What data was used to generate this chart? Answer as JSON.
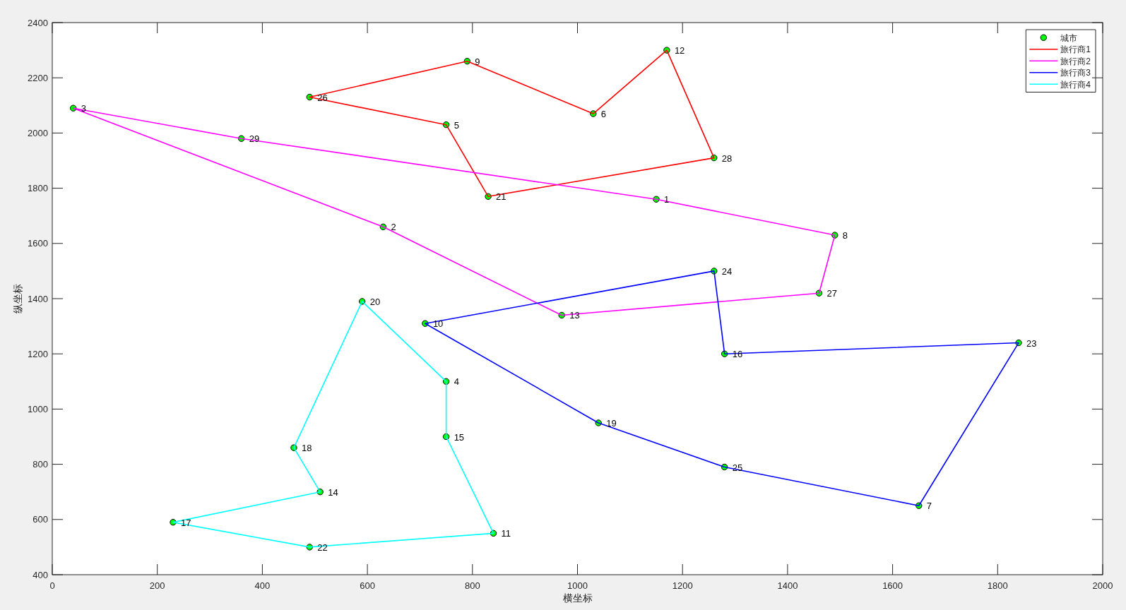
{
  "chart_data": {
    "type": "line",
    "xlabel": "横坐标",
    "ylabel": "纵坐标",
    "xlim": [
      0,
      2000
    ],
    "ylim": [
      400,
      2400
    ],
    "xticks": [
      0,
      200,
      400,
      600,
      800,
      1000,
      1200,
      1400,
      1600,
      1800,
      2000
    ],
    "yticks": [
      400,
      600,
      800,
      1000,
      1200,
      1400,
      1600,
      1800,
      2000,
      2200,
      2400
    ],
    "legend": "top right",
    "line_style": "solid",
    "series": [
      {
        "name": "城市",
        "type": "scatter",
        "marker": "circle",
        "color": "#00ff00",
        "x": [
          1150,
          630,
          40,
          750,
          750,
          1030,
          1650,
          1490,
          790,
          710,
          840,
          1170,
          970,
          510,
          750,
          1280,
          230,
          460,
          1040,
          590,
          830,
          490,
          1840,
          1260,
          1280,
          490,
          1460,
          1260,
          360
        ],
        "values": [
          1760,
          1660,
          2090,
          1100,
          2030,
          2070,
          650,
          1630,
          2260,
          1310,
          550,
          2300,
          1340,
          700,
          900,
          1200,
          590,
          860,
          950,
          1390,
          1770,
          500,
          1240,
          1500,
          790,
          2130,
          1420,
          1910,
          1980
        ]
      },
      {
        "name": "旅行商1",
        "color": "#ff0000",
        "x": [
          490,
          790,
          1030,
          1170,
          1260,
          830,
          750,
          490
        ],
        "values": [
          2130,
          2260,
          2070,
          2300,
          1910,
          1770,
          2030,
          2130
        ]
      },
      {
        "name": "旅行商2",
        "color": "#ff00ff",
        "x": [
          40,
          360,
          1150,
          1490,
          1460,
          970,
          630,
          40
        ],
        "values": [
          2090,
          1980,
          1760,
          1630,
          1420,
          1340,
          1660,
          2090
        ]
      },
      {
        "name": "旅行商3",
        "color": "#0000ff",
        "x": [
          710,
          1260,
          1280,
          1840,
          1650,
          1280,
          1040,
          710
        ],
        "values": [
          1310,
          1500,
          1200,
          1240,
          650,
          790,
          950,
          1310
        ]
      },
      {
        "name": "旅行商4",
        "color": "#00ffff",
        "x": [
          590,
          750,
          750,
          840,
          490,
          230,
          510,
          460,
          590
        ],
        "values": [
          1390,
          1100,
          900,
          550,
          500,
          590,
          700,
          860,
          1390
        ]
      }
    ],
    "annotations": [
      {
        "text": "1",
        "x": 1150,
        "y": 1760
      },
      {
        "text": "2",
        "x": 630,
        "y": 1660
      },
      {
        "text": "3",
        "x": 40,
        "y": 2090
      },
      {
        "text": "4",
        "x": 750,
        "y": 1100
      },
      {
        "text": "5",
        "x": 750,
        "y": 2030
      },
      {
        "text": "6",
        "x": 1030,
        "y": 2070
      },
      {
        "text": "7",
        "x": 1650,
        "y": 650
      },
      {
        "text": "8",
        "x": 1490,
        "y": 1630
      },
      {
        "text": "9",
        "x": 790,
        "y": 2260
      },
      {
        "text": "10",
        "x": 710,
        "y": 1310
      },
      {
        "text": "11",
        "x": 840,
        "y": 550
      },
      {
        "text": "12",
        "x": 1170,
        "y": 2300
      },
      {
        "text": "13",
        "x": 970,
        "y": 1340
      },
      {
        "text": "14",
        "x": 510,
        "y": 700
      },
      {
        "text": "15",
        "x": 750,
        "y": 900
      },
      {
        "text": "16",
        "x": 1280,
        "y": 1200
      },
      {
        "text": "17",
        "x": 230,
        "y": 590
      },
      {
        "text": "18",
        "x": 460,
        "y": 860
      },
      {
        "text": "19",
        "x": 1040,
        "y": 950
      },
      {
        "text": "20",
        "x": 590,
        "y": 1390
      },
      {
        "text": "21",
        "x": 830,
        "y": 1770
      },
      {
        "text": "22",
        "x": 490,
        "y": 500
      },
      {
        "text": "23",
        "x": 1840,
        "y": 1240
      },
      {
        "text": "24",
        "x": 1260,
        "y": 1500
      },
      {
        "text": "25",
        "x": 1280,
        "y": 790
      },
      {
        "text": "26",
        "x": 490,
        "y": 2130
      },
      {
        "text": "27",
        "x": 1460,
        "y": 1420
      },
      {
        "text": "28",
        "x": 1260,
        "y": 1910
      },
      {
        "text": "29",
        "x": 360,
        "y": 1980
      }
    ]
  }
}
